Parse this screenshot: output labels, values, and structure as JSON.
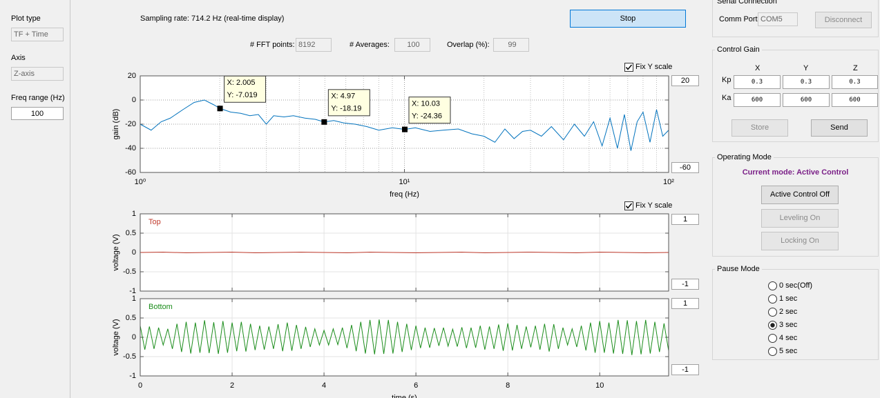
{
  "left_panel": {
    "plot_type_label": "Plot type",
    "plot_type": "TF + Time",
    "axis_label": "Axis",
    "axis": "Z-axis",
    "freq_range_label": "Freq range (Hz)",
    "freq_range": "100"
  },
  "top_bar": {
    "sampling_rate": "Sampling rate: 714.2 Hz (real-time display)",
    "stop_button": "Stop",
    "fft_points_label": "# FFT points:",
    "fft_points": "8192",
    "averages_label": "# Averages:",
    "averages": "100",
    "overlap_label": "Overlap (%):",
    "overlap": "99"
  },
  "plot_controls": {
    "fix_y_scale_fft": "Fix Y scale",
    "fft_ymax": "20",
    "fft_ymin": "-60",
    "fix_y_scale_time": "Fix Y scale",
    "top_ymax": "1",
    "top_ymin": "-1",
    "bottom_ymax": "1",
    "bottom_ymin": "-1"
  },
  "serial_connection": {
    "title": "Serial Connection",
    "comm_port_label": "Comm Port",
    "comm_port": "COM5",
    "disconnect_button": "Disconnect"
  },
  "control_gain": {
    "title": "Control Gain",
    "columns": [
      "X",
      "Y",
      "Z"
    ],
    "rows": [
      {
        "label": "Kp",
        "values": [
          "0.3",
          "0.3",
          "0.3"
        ]
      },
      {
        "label": "Ka",
        "values": [
          "600",
          "600",
          "600"
        ]
      }
    ],
    "store_button": "Store",
    "send_button": "Send"
  },
  "operating_mode": {
    "title": "Operating Mode",
    "current_mode": "Current mode: Active Control",
    "buttons": [
      "Active Control Off",
      "Leveling On",
      "Locking On"
    ]
  },
  "pause_mode": {
    "title": "Pause Mode",
    "options": [
      "0 sec(Off)",
      "1 sec",
      "2 sec",
      "3 sec",
      "4 sec",
      "5 sec"
    ],
    "selected": "3 sec"
  },
  "chart_data": [
    {
      "type": "line",
      "xlabel": "freq (Hz)",
      "ylabel": "gain (dB)",
      "x_scale": "log",
      "xlim": [
        1,
        100
      ],
      "ylim": [
        -60,
        20
      ],
      "xticks": [
        {
          "value": 1,
          "label": "10⁰"
        },
        {
          "value": 10,
          "label": "10¹"
        },
        {
          "value": 100,
          "label": "10²"
        }
      ],
      "yticks": [
        -60,
        -40,
        -20,
        0,
        20
      ],
      "grid": true,
      "grid_style": "dotted",
      "x": [
        1,
        1.1,
        1.2,
        1.3,
        1.45,
        1.6,
        1.75,
        1.9,
        2.005,
        2.2,
        2.4,
        2.6,
        2.8,
        3,
        3.2,
        3.5,
        3.8,
        4.2,
        4.6,
        4.97,
        5.4,
        5.9,
        6.5,
        7.2,
        8,
        9,
        10.03,
        11,
        12.5,
        14,
        16,
        18,
        20,
        22,
        24,
        26,
        28,
        30,
        33,
        36,
        40,
        44,
        48,
        52,
        56,
        60,
        64,
        68,
        72,
        76,
        80,
        85,
        90,
        95,
        100
      ],
      "series": [
        {
          "color": "#0072bd",
          "values": [
            -20,
            -25,
            -18,
            -15,
            -8,
            -2,
            0,
            -4,
            -7.019,
            -10,
            -11,
            -13,
            -12,
            -20,
            -13,
            -14,
            -13,
            -15,
            -16,
            -18.19,
            -17,
            -19,
            -20,
            -22,
            -25,
            -23,
            -24.36,
            -23,
            -26,
            -25,
            -24,
            -28,
            -30,
            -35,
            -24,
            -32,
            -26,
            -25,
            -30,
            -22,
            -33,
            -20,
            -30,
            -18,
            -38,
            -15,
            -40,
            -12,
            -42,
            -18,
            -10,
            -35,
            -8,
            -30,
            -25
          ]
        }
      ],
      "annotations": [
        {
          "x": 2.005,
          "y": -7.019,
          "x_label": "X: 2.005",
          "y_label": "Y: -7.019"
        },
        {
          "x": 4.97,
          "y": -18.19,
          "x_label": "X: 4.97",
          "y_label": "Y: -18.19"
        },
        {
          "x": 10.03,
          "y": -24.36,
          "x_label": "X: 10.03",
          "y_label": "Y: -24.36"
        }
      ]
    },
    {
      "type": "line",
      "ylabel": "voltage (V)",
      "xlim": [
        0,
        11.5
      ],
      "ylim": [
        -1,
        1
      ],
      "xticks": [
        0,
        2,
        4,
        6,
        8,
        10
      ],
      "xtick_labels": false,
      "yticks": [
        -1,
        -0.5,
        0,
        0.5,
        1
      ],
      "grid": true,
      "grid_style": "solid",
      "x": [
        0,
        0.5,
        1,
        1.5,
        2,
        2.5,
        3,
        3.5,
        4,
        4.5,
        5,
        5.5,
        6,
        6.5,
        7,
        7.5,
        8,
        8.5,
        9,
        9.5,
        10,
        10.5,
        11,
        11.5
      ],
      "series": [
        {
          "name": "Top",
          "color": "#c0392b",
          "values": [
            0,
            0.01,
            -0.01,
            0,
            0.01,
            -0.01,
            0,
            0.01,
            0,
            -0.01,
            0.01,
            0,
            -0.01,
            0,
            0.01,
            -0.01,
            0,
            0.01,
            0,
            -0.01,
            0.01,
            0,
            -0.01,
            0
          ]
        }
      ]
    },
    {
      "type": "line",
      "xlabel": "time (s)",
      "ylabel": "voltage (V)",
      "xlim": [
        0,
        11.5
      ],
      "ylim": [
        -1,
        1
      ],
      "xticks": [
        0,
        2,
        4,
        6,
        8,
        10
      ],
      "yticks": [
        -1,
        -0.5,
        0,
        0.5,
        1
      ],
      "grid": true,
      "grid_style": "solid",
      "x": [
        0,
        0.1,
        0.2,
        0.3,
        0.4,
        0.5,
        0.6,
        0.7,
        0.8,
        0.9,
        1,
        1.1,
        1.2,
        1.3,
        1.4,
        1.5,
        1.6,
        1.7,
        1.8,
        1.9,
        2,
        2.1,
        2.2,
        2.3,
        2.4,
        2.5,
        2.6,
        2.7,
        2.8,
        2.9,
        3,
        3.1,
        3.2,
        3.3,
        3.4,
        3.5,
        3.6,
        3.7,
        3.8,
        3.9,
        4,
        4.1,
        4.2,
        4.3,
        4.4,
        4.5,
        4.6,
        4.7,
        4.8,
        4.9,
        5,
        5.1,
        5.2,
        5.3,
        5.4,
        5.5,
        5.6,
        5.7,
        5.8,
        5.9,
        6,
        6.1,
        6.2,
        6.3,
        6.4,
        6.5,
        6.6,
        6.7,
        6.8,
        6.9,
        7,
        7.1,
        7.2,
        7.3,
        7.4,
        7.5,
        7.6,
        7.7,
        7.8,
        7.9,
        8,
        8.1,
        8.2,
        8.3,
        8.4,
        8.5,
        8.6,
        8.7,
        8.8,
        8.9,
        9,
        9.1,
        9.2,
        9.3,
        9.4,
        9.5,
        9.6,
        9.7,
        9.8,
        9.9,
        10,
        10.1,
        10.2,
        10.3,
        10.4,
        10.5,
        10.6,
        10.7,
        10.8,
        10.9,
        11,
        11.1,
        11.2,
        11.3,
        11.4,
        11.5
      ],
      "series": [
        {
          "name": "Bottom",
          "color": "#1a8c1a",
          "values": [
            0.3,
            -0.32,
            0.28,
            -0.3,
            0.25,
            -0.2,
            0.22,
            -0.3,
            0.35,
            -0.38,
            0.4,
            -0.42,
            0.38,
            -0.4,
            0.44,
            -0.41,
            0.39,
            -0.43,
            0.42,
            -0.4,
            0.38,
            -0.36,
            0.4,
            -0.37,
            0.35,
            -0.33,
            0.3,
            -0.32,
            0.28,
            -0.3,
            0.34,
            -0.36,
            0.38,
            -0.35,
            0.32,
            -0.3,
            0.27,
            -0.25,
            0.22,
            -0.2,
            0.18,
            -0.2,
            0.22,
            -0.19,
            0.25,
            -0.28,
            0.32,
            -0.36,
            0.4,
            -0.42,
            0.45,
            -0.44,
            0.46,
            -0.43,
            0.45,
            -0.42,
            0.4,
            -0.38,
            0.35,
            -0.33,
            0.3,
            -0.28,
            0.25,
            -0.27,
            0.24,
            -0.22,
            0.25,
            -0.23,
            0.21,
            -0.24,
            0.26,
            -0.28,
            0.25,
            -0.27,
            0.3,
            -0.32,
            0.28,
            -0.3,
            0.33,
            -0.35,
            0.36,
            -0.34,
            0.32,
            -0.3,
            0.28,
            -0.26,
            0.3,
            -0.32,
            0.35,
            -0.37,
            0.34,
            -0.3,
            0.25,
            -0.2,
            0.22,
            -0.25,
            0.3,
            -0.34,
            0.38,
            -0.4,
            0.42,
            -0.4,
            0.38,
            -0.42,
            0.45,
            -0.43,
            0.44,
            -0.46,
            0.42,
            -0.44,
            0.45,
            -0.42,
            0.4,
            -0.38,
            0.36,
            -0.35
          ]
        }
      ]
    }
  ]
}
